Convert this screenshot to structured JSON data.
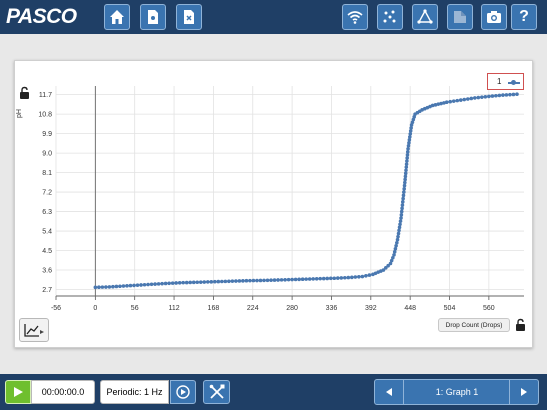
{
  "header": {
    "logo": "PASCO",
    "left_buttons": [
      "home-icon",
      "experiment-file-icon",
      "close-file-icon"
    ],
    "right_buttons": [
      "wireless-icon",
      "data-points-icon",
      "graph-tools-icon",
      "journal-icon",
      "camera-icon",
      "help-icon"
    ],
    "help_label": "?"
  },
  "graph": {
    "y_axis_label": "pH",
    "x_axis_label": "Drop Count (Drops)",
    "legend_label": "1"
  },
  "chart_data": {
    "type": "scatter",
    "xlabel": "Drop Count (Drops)",
    "ylabel": "pH",
    "xlim": [
      -56,
      610
    ],
    "ylim": [
      2.4,
      12.1
    ],
    "x_ticks": [
      "-56",
      "0",
      "56",
      "112",
      "168",
      "224",
      "280",
      "336",
      "392",
      "448",
      "504",
      "560"
    ],
    "y_ticks": [
      "2.7",
      "3.6",
      "4.5",
      "5.4",
      "6.3",
      "7.2",
      "8.1",
      "9.0",
      "9.9",
      "10.8",
      "11.7"
    ],
    "grid": true,
    "legend_position": "top-right",
    "series": [
      {
        "name": "1",
        "color": "#4a78b0",
        "points": [
          [
            0,
            2.8
          ],
          [
            20,
            2.82
          ],
          [
            40,
            2.86
          ],
          [
            60,
            2.9
          ],
          [
            80,
            2.94
          ],
          [
            100,
            2.98
          ],
          [
            120,
            3.01
          ],
          [
            140,
            3.03
          ],
          [
            160,
            3.05
          ],
          [
            180,
            3.07
          ],
          [
            200,
            3.09
          ],
          [
            220,
            3.11
          ],
          [
            240,
            3.12
          ],
          [
            260,
            3.14
          ],
          [
            280,
            3.16
          ],
          [
            300,
            3.18
          ],
          [
            320,
            3.2
          ],
          [
            340,
            3.22
          ],
          [
            360,
            3.25
          ],
          [
            380,
            3.3
          ],
          [
            395,
            3.4
          ],
          [
            410,
            3.6
          ],
          [
            420,
            3.9
          ],
          [
            425,
            4.3
          ],
          [
            430,
            5.0
          ],
          [
            435,
            6.0
          ],
          [
            440,
            7.5
          ],
          [
            445,
            9.2
          ],
          [
            450,
            10.3
          ],
          [
            455,
            10.8
          ],
          [
            465,
            11.0
          ],
          [
            480,
            11.2
          ],
          [
            500,
            11.35
          ],
          [
            520,
            11.45
          ],
          [
            540,
            11.55
          ],
          [
            560,
            11.62
          ],
          [
            580,
            11.68
          ],
          [
            600,
            11.72
          ]
        ]
      }
    ]
  },
  "footer": {
    "timer": "00:00:00.0",
    "sampling": "Periodic: 1 Hz",
    "page_label": "1: Graph 1"
  }
}
